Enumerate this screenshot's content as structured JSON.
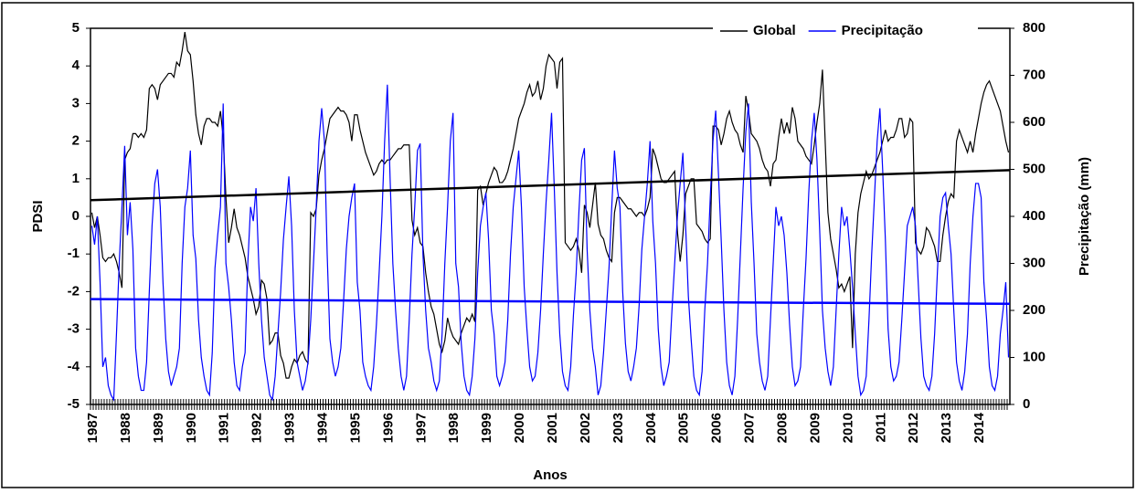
{
  "chart_data": {
    "type": "line",
    "x_label": "Anos",
    "y_label": "PDSI",
    "y2_label": "Precipitação (mm)",
    "ylim": [
      -5,
      5
    ],
    "yticks": [
      -5,
      -4,
      -3,
      -2,
      -1,
      0,
      1,
      2,
      3,
      4,
      5
    ],
    "y2lim": [
      0,
      800
    ],
    "y2ticks": [
      0,
      100,
      200,
      300,
      400,
      500,
      600,
      700,
      800
    ],
    "legend": "top-right",
    "grid": false,
    "categories": [
      "1987",
      null,
      null,
      null,
      null,
      null,
      null,
      null,
      null,
      null,
      null,
      null,
      "1988",
      null,
      null,
      null,
      null,
      null,
      null,
      null,
      null,
      null,
      null,
      null,
      "1989",
      null,
      null,
      null,
      null,
      null,
      null,
      null,
      null,
      null,
      null,
      null,
      "1990",
      null,
      null,
      null,
      null,
      null,
      null,
      null,
      null,
      null,
      null,
      null,
      "1991",
      null,
      null,
      null,
      null,
      null,
      null,
      null,
      null,
      null,
      null,
      null,
      "1992",
      null,
      null,
      null,
      null,
      null,
      null,
      null,
      null,
      null,
      null,
      null,
      "1993",
      null,
      null,
      null,
      null,
      null,
      null,
      null,
      null,
      null,
      null,
      null,
      "1994",
      null,
      null,
      null,
      null,
      null,
      null,
      null,
      null,
      null,
      null,
      null,
      "1995",
      null,
      null,
      null,
      null,
      null,
      null,
      null,
      null,
      null,
      null,
      null,
      "1996",
      null,
      null,
      null,
      null,
      null,
      null,
      null,
      null,
      null,
      null,
      null,
      "1997",
      null,
      null,
      null,
      null,
      null,
      null,
      null,
      null,
      null,
      null,
      null,
      "1998",
      null,
      null,
      null,
      null,
      null,
      null,
      null,
      null,
      null,
      null,
      null,
      "1999",
      null,
      null,
      null,
      null,
      null,
      null,
      null,
      null,
      null,
      null,
      null,
      "2000",
      null,
      null,
      null,
      null,
      null,
      null,
      null,
      null,
      null,
      null,
      null,
      "2001",
      null,
      null,
      null,
      null,
      null,
      null,
      null,
      null,
      null,
      null,
      null,
      "2002",
      null,
      null,
      null,
      null,
      null,
      null,
      null,
      null,
      null,
      null,
      null,
      "2003",
      null,
      null,
      null,
      null,
      null,
      null,
      null,
      null,
      null,
      null,
      null,
      "2004",
      null,
      null,
      null,
      null,
      null,
      null,
      null,
      null,
      null,
      null,
      null,
      "2005",
      null,
      null,
      null,
      null,
      null,
      null,
      null,
      null,
      null,
      null,
      null,
      "2006",
      null,
      null,
      null,
      null,
      null,
      null,
      null,
      null,
      null,
      null,
      null,
      "2007",
      null,
      null,
      null,
      null,
      null,
      null,
      null,
      null,
      null,
      null,
      null,
      "2008",
      null,
      null,
      null,
      null,
      null,
      null,
      null,
      null,
      null,
      null,
      null,
      "2009",
      null,
      null,
      null,
      null,
      null,
      null,
      null,
      null,
      null,
      null,
      null,
      "2010",
      null,
      null,
      null,
      null,
      null,
      null,
      null,
      null,
      null,
      null,
      null,
      "2011",
      null,
      null,
      null,
      null,
      null,
      null,
      null,
      null,
      null,
      null,
      null,
      "2012",
      null,
      null,
      null,
      null,
      null,
      null,
      null,
      null,
      null,
      null,
      null,
      "2013",
      null,
      null,
      null,
      null,
      null,
      null,
      null,
      null,
      null,
      null,
      null,
      "2014",
      null,
      null,
      null,
      null,
      null,
      null,
      null,
      null,
      null,
      null,
      null
    ],
    "series": [
      {
        "name": "Global",
        "color": "#000000",
        "values": [
          0.1,
          -0.3,
          0.0,
          -0.5,
          -1.1,
          -1.2,
          -1.1,
          -1.1,
          -1.0,
          -1.2,
          -1.5,
          -1.9,
          1.5,
          1.7,
          1.8,
          2.2,
          2.2,
          2.1,
          2.2,
          2.1,
          2.3,
          3.4,
          3.5,
          3.4,
          3.1,
          3.5,
          3.6,
          3.7,
          3.8,
          3.8,
          3.7,
          4.1,
          4.0,
          4.4,
          4.9,
          4.4,
          4.3,
          3.6,
          2.7,
          2.2,
          1.9,
          2.4,
          2.6,
          2.6,
          2.5,
          2.5,
          2.4,
          2.8,
          2.1,
          0.5,
          -0.7,
          -0.3,
          0.2,
          -0.3,
          -0.5,
          -0.8,
          -1.1,
          -1.6,
          -1.9,
          -2.2,
          -2.6,
          -2.4,
          -1.7,
          -1.8,
          -2.2,
          -3.4,
          -3.3,
          -3.1,
          -3.1,
          -3.7,
          -3.9,
          -4.3,
          -4.3,
          -4.0,
          -3.8,
          -3.9,
          -3.7,
          -3.6,
          -3.8,
          -3.9,
          0.1,
          0.0,
          0.2,
          1.1,
          1.5,
          1.8,
          2.2,
          2.6,
          2.7,
          2.8,
          2.9,
          2.8,
          2.8,
          2.7,
          2.5,
          2.0,
          2.7,
          2.7,
          2.3,
          2.0,
          1.7,
          1.5,
          1.3,
          1.1,
          1.2,
          1.4,
          1.5,
          1.4,
          1.5,
          1.5,
          1.6,
          1.7,
          1.8,
          1.8,
          1.9,
          1.9,
          1.9,
          -0.1,
          -0.5,
          -0.3,
          -0.7,
          -0.8,
          -1.5,
          -2.0,
          -2.4,
          -2.6,
          -3.0,
          -3.4,
          -3.6,
          -3.3,
          -2.7,
          -3.0,
          -3.2,
          -3.3,
          -3.4,
          -3.1,
          -2.9,
          -2.7,
          -2.8,
          -2.6,
          -2.8,
          0.7,
          0.8,
          0.3,
          0.6,
          0.9,
          1.1,
          1.3,
          1.2,
          0.9,
          0.9,
          1.0,
          1.2,
          1.5,
          1.8,
          2.2,
          2.6,
          2.8,
          3.0,
          3.3,
          3.5,
          3.2,
          3.3,
          3.6,
          3.1,
          3.4,
          4.0,
          4.3,
          4.2,
          4.1,
          3.4,
          4.1,
          4.2,
          -0.7,
          -0.8,
          -0.9,
          -0.8,
          -0.6,
          -0.9,
          -1.5,
          0.3,
          0.1,
          -0.3,
          0.3,
          0.9,
          -0.2,
          -0.5,
          -0.6,
          -0.9,
          -1.1,
          -1.2,
          0.1,
          0.5,
          0.5,
          0.4,
          0.3,
          0.2,
          0.2,
          0.1,
          0.0,
          0.1,
          0.1,
          0.0,
          0.2,
          0.5,
          1.8,
          1.6,
          1.3,
          1.0,
          0.9,
          0.9,
          1.0,
          1.1,
          1.2,
          -0.4,
          -1.2,
          -0.5,
          0.6,
          0.8,
          1.0,
          1.0,
          -0.2,
          -0.3,
          -0.4,
          -0.6,
          -0.7,
          -0.6,
          2.4,
          2.4,
          2.3,
          1.9,
          2.2,
          2.6,
          2.8,
          2.5,
          2.3,
          2.2,
          1.9,
          1.7,
          3.2,
          2.8,
          2.2,
          2.1,
          2.0,
          1.8,
          1.5,
          1.3,
          1.2,
          0.8,
          1.4,
          1.5,
          2.1,
          2.6,
          2.2,
          2.5,
          2.2,
          2.9,
          2.6,
          2.0,
          1.9,
          1.8,
          1.6,
          1.5,
          1.4,
          1.9,
          2.5,
          3.0,
          3.9,
          2.0,
          0.1,
          -0.6,
          -1.0,
          -1.4,
          -1.9,
          -1.8,
          -2.0,
          -1.8,
          -1.6,
          -3.5,
          -1.0,
          0.1,
          0.6,
          0.9,
          1.2,
          1.0,
          1.1,
          1.3,
          1.5,
          1.7,
          2.0,
          2.3,
          2.0,
          2.1,
          2.1,
          2.3,
          2.6,
          2.6,
          2.1,
          2.2,
          2.6,
          2.5,
          -0.7,
          -0.9,
          -1.0,
          -0.8,
          -0.3,
          -0.4,
          -0.6,
          -0.8,
          -1.2,
          -1.2,
          -0.5,
          0.0,
          0.4,
          0.6,
          0.5,
          2.0,
          2.3,
          2.1,
          1.9,
          1.7,
          2.0,
          1.7,
          2.2,
          2.6,
          3.0,
          3.3,
          3.5,
          3.6,
          3.4,
          3.2,
          3.0,
          2.8,
          2.4,
          2.0,
          1.7
        ]
      },
      {
        "name": "Precipitação",
        "color": "#0000ff",
        "axis": "y2",
        "values": [
          380,
          340,
          400,
          260,
          80,
          100,
          40,
          20,
          10,
          150,
          300,
          420,
          550,
          360,
          430,
          330,
          120,
          60,
          30,
          30,
          90,
          240,
          380,
          470,
          500,
          420,
          260,
          140,
          70,
          40,
          60,
          80,
          120,
          300,
          420,
          460,
          540,
          360,
          310,
          180,
          100,
          60,
          30,
          20,
          110,
          290,
          360,
          420,
          640,
          300,
          250,
          180,
          90,
          40,
          30,
          80,
          110,
          300,
          420,
          390,
          460,
          300,
          180,
          100,
          60,
          20,
          10,
          60,
          150,
          240,
          350,
          420,
          485,
          380,
          200,
          90,
          60,
          30,
          50,
          90,
          180,
          300,
          420,
          560,
          630,
          560,
          320,
          140,
          90,
          60,
          80,
          120,
          220,
          330,
          400,
          440,
          470,
          260,
          200,
          90,
          60,
          40,
          30,
          80,
          170,
          280,
          400,
          560,
          680,
          480,
          300,
          200,
          120,
          60,
          30,
          60,
          180,
          320,
          420,
          540,
          555,
          320,
          200,
          120,
          90,
          50,
          30,
          50,
          150,
          300,
          420,
          560,
          620,
          300,
          250,
          130,
          60,
          30,
          20,
          60,
          140,
          280,
          380,
          420,
          450,
          350,
          200,
          150,
          60,
          40,
          60,
          90,
          180,
          320,
          420,
          480,
          540,
          420,
          250,
          160,
          80,
          50,
          60,
          110,
          200,
          320,
          430,
          520,
          620,
          460,
          280,
          150,
          70,
          40,
          30,
          80,
          190,
          280,
          410,
          520,
          545,
          330,
          200,
          120,
          80,
          20,
          40,
          110,
          200,
          290,
          420,
          540,
          460,
          420,
          240,
          130,
          70,
          50,
          80,
          120,
          210,
          330,
          400,
          470,
          560,
          390,
          300,
          160,
          80,
          40,
          60,
          90,
          200,
          300,
          400,
          470,
          535,
          380,
          230,
          140,
          60,
          30,
          20,
          70,
          200,
          300,
          440,
          560,
          625,
          490,
          350,
          200,
          90,
          40,
          20,
          60,
          180,
          320,
          460,
          580,
          640,
          430,
          300,
          150,
          90,
          50,
          30,
          60,
          180,
          300,
          420,
          380,
          400,
          360,
          280,
          170,
          80,
          40,
          50,
          80,
          200,
          310,
          450,
          560,
          620,
          520,
          370,
          200,
          120,
          70,
          40,
          80,
          200,
          320,
          420,
          380,
          400,
          330,
          250,
          150,
          60,
          20,
          30,
          60,
          180,
          320,
          440,
          560,
          630,
          500,
          350,
          160,
          80,
          50,
          60,
          90,
          180,
          280,
          380,
          400,
          420,
          380,
          260,
          140,
          60,
          40,
          30,
          60,
          150,
          280,
          400,
          440,
          450,
          380,
          320,
          200,
          90,
          50,
          30,
          70,
          150,
          300,
          400,
          470,
          470,
          440,
          260,
          180,
          80,
          40,
          30,
          60,
          150,
          200,
          260,
          100
        ]
      }
    ],
    "trend_lines": [
      {
        "color": "#000000",
        "values": [
          0.43,
          1.23
        ]
      },
      {
        "color": "#0000ff",
        "axis": "y2",
        "values": [
          224,
          214
        ]
      }
    ]
  }
}
